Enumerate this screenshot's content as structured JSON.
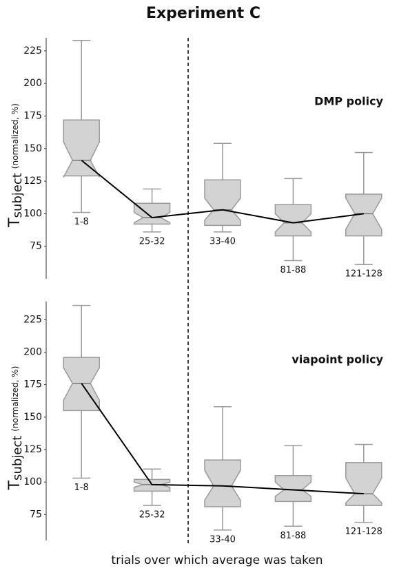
{
  "chart_data": [
    {
      "type": "box",
      "title": "Experiment C",
      "annotation": "DMP policy",
      "ylabel": [
        "T",
        "subject",
        "(normalized, %)"
      ],
      "categories": [
        "1-8",
        "25-32",
        "33-40",
        "81-88",
        "121-128"
      ],
      "whislo": [
        101,
        86,
        86,
        64,
        61
      ],
      "q1": [
        129,
        92,
        91,
        83,
        83
      ],
      "notch_lo": [
        128,
        93,
        95,
        86,
        88
      ],
      "med": [
        141,
        97,
        103,
        93,
        100
      ],
      "notch_hi": [
        155,
        101,
        112,
        100,
        112
      ],
      "q3": [
        172,
        108,
        126,
        107,
        115
      ],
      "whishi": [
        233,
        119,
        154,
        127,
        147
      ],
      "ylim": [
        50,
        235
      ],
      "yticks": [
        75,
        100,
        125,
        150,
        175,
        200,
        225
      ],
      "color": "#d3d3d3",
      "edge_color": "#999999",
      "line_color": "#000000"
    },
    {
      "type": "box",
      "annotation": "viapoint policy",
      "ylabel": [
        "T",
        "subject",
        "(normalized, %)"
      ],
      "xlabel": "trials over which average was taken",
      "categories": [
        "1-8",
        "25-32",
        "33-40",
        "81-88",
        "121-128"
      ],
      "whislo": [
        103,
        82,
        63,
        66,
        69
      ],
      "q1": [
        155,
        93,
        81,
        85,
        82
      ],
      "notch_lo": [
        163,
        96,
        86,
        89,
        84
      ],
      "med": [
        176,
        98,
        97,
        94,
        91
      ],
      "notch_hi": [
        188,
        100,
        109,
        100,
        103
      ],
      "q3": [
        196,
        102,
        117,
        105,
        115
      ],
      "whishi": [
        236,
        110,
        158,
        128,
        129
      ],
      "ylim": [
        55,
        239
      ],
      "yticks": [
        75,
        100,
        125,
        150,
        175,
        200,
        225
      ],
      "color": "#d3d3d3",
      "edge_color": "#999999",
      "line_color": "#000000"
    }
  ]
}
